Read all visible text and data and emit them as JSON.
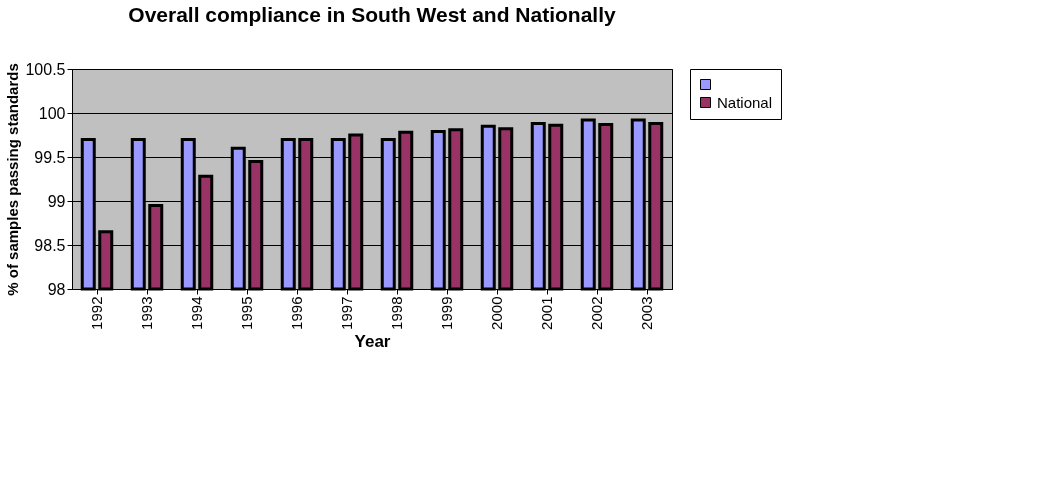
{
  "chart_data": {
    "type": "bar",
    "title": "Overall compliance in South West and Nationally",
    "xlabel": "Year",
    "ylabel": "% of samples passing standards",
    "categories": [
      "1992",
      "1993",
      "1994",
      "1995",
      "1996",
      "1997",
      "1998",
      "1999",
      "2000",
      "2001",
      "2002",
      "2003"
    ],
    "series": [
      {
        "color": "#9999ff",
        "values": [
          99.7,
          99.7,
          99.7,
          99.6,
          99.7,
          99.7,
          99.7,
          99.79,
          99.85,
          99.88,
          99.92,
          99.92
        ]
      },
      {
        "name": "National",
        "color": "#993366",
        "values": [
          98.65,
          98.95,
          99.28,
          99.45,
          99.7,
          99.75,
          99.78,
          99.81,
          99.82,
          99.86,
          99.87,
          99.88
        ]
      }
    ],
    "ylim": [
      98,
      100.5
    ],
    "yticks": [
      98,
      98.5,
      99,
      99.5,
      100,
      100.5
    ],
    "grid": "y",
    "legend": "right"
  }
}
